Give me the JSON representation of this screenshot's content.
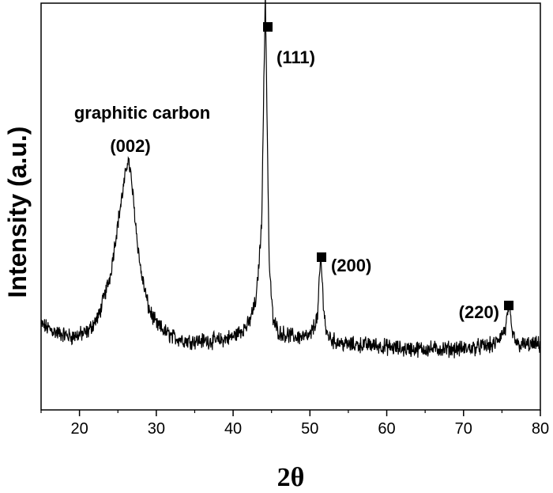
{
  "chart_data": {
    "type": "line",
    "xlabel": "2θ",
    "ylabel": "Intensity (a.u.)",
    "xlim": [
      15,
      80
    ],
    "ylim": [
      0,
      100
    ],
    "x_ticks": [
      20,
      30,
      40,
      50,
      60,
      70,
      80
    ],
    "y_ticks_labeled": false,
    "grid": false,
    "legend": "none",
    "series": [
      {
        "color": "#000000",
        "x": [
          15,
          17,
          19,
          21,
          22.5,
          24,
          25,
          25.5,
          26,
          26.3,
          26.6,
          27,
          27.5,
          28,
          29,
          30,
          32,
          34,
          36,
          38,
          40,
          42,
          43,
          43.7,
          44.0,
          44.2,
          44.4,
          44.7,
          45.2,
          46,
          48,
          50,
          51.0,
          51.4,
          51.7,
          52.1,
          53,
          55,
          58,
          62,
          66,
          70,
          74,
          75.5,
          75.9,
          76.3,
          77,
          78,
          80
        ],
        "y": [
          21,
          19,
          18,
          19,
          23,
          33,
          46,
          52,
          58,
          62,
          59,
          52,
          42,
          34,
          25,
          21,
          18,
          17,
          17,
          17,
          18,
          21,
          27,
          45,
          80,
          102,
          75,
          36,
          22,
          19,
          18,
          18,
          23,
          38,
          28,
          19,
          17,
          16,
          16,
          15,
          15,
          15,
          16,
          20,
          26,
          19,
          16,
          16,
          16
        ]
      }
    ],
    "annotations": [
      {
        "line1": "graphitic carbon",
        "line2": "(002)",
        "x": 26.3
      },
      {
        "text": "(111)",
        "x": 44.2,
        "marker": "filled-square"
      },
      {
        "text": "(200)",
        "x": 51.4,
        "marker": "filled-square"
      },
      {
        "text": "(220)",
        "x": 75.9,
        "marker": "filled-square"
      }
    ]
  }
}
